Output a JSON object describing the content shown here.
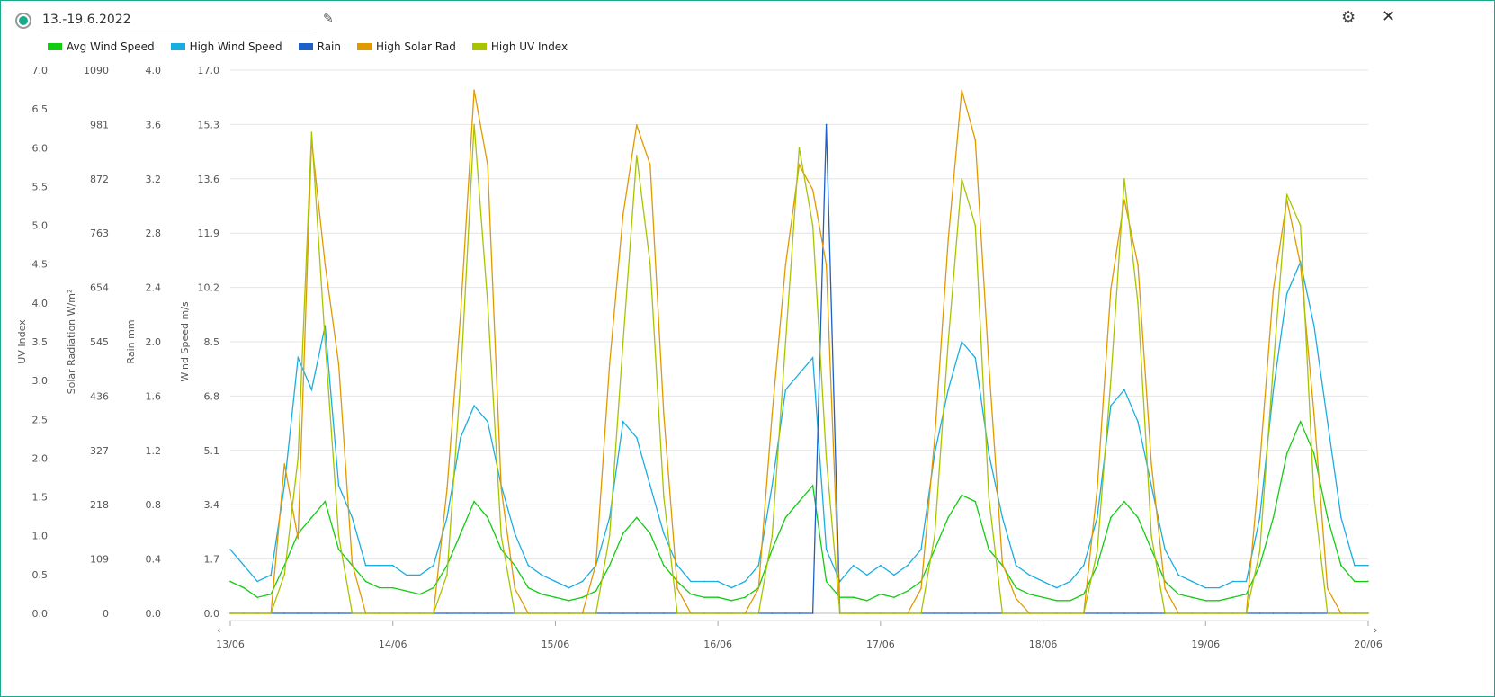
{
  "header": {
    "title": "13.-19.6.2022",
    "edit_icon": "pencil-icon",
    "settings_icon": "gear-icon",
    "close_icon": "close-icon"
  },
  "chart_data": {
    "type": "line",
    "title": "13.-19.6.2022",
    "x": {
      "categories": [
        "13/06",
        "14/06",
        "15/06",
        "16/06",
        "17/06",
        "18/06",
        "19/06",
        "20/06"
      ],
      "resolution_hours": 2
    },
    "axes": [
      {
        "label": "UV Index",
        "range": [
          0,
          7
        ],
        "ticks": [
          "0.0",
          "0.5",
          "1.0",
          "1.5",
          "2.0",
          "2.5",
          "3.0",
          "3.5",
          "4.0",
          "4.5",
          "5.0",
          "5.5",
          "6.0",
          "6.5",
          "7.0"
        ]
      },
      {
        "label": "Solar Radiation W/m²",
        "range": [
          0,
          1090
        ],
        "ticks": [
          "0",
          "109",
          "218",
          "327",
          "436",
          "545",
          "654",
          "763",
          "872",
          "981",
          "1090"
        ]
      },
      {
        "label": "Rain mm",
        "range": [
          0,
          4
        ],
        "ticks": [
          "0.0",
          "0.4",
          "0.8",
          "1.2",
          "1.6",
          "2.0",
          "2.4",
          "2.8",
          "3.2",
          "3.6",
          "4.0"
        ]
      },
      {
        "label": "Wind Speed m/s",
        "range": [
          0,
          17
        ],
        "ticks": [
          "0.0",
          "1.7",
          "3.4",
          "5.1",
          "6.8",
          "8.5",
          "10.2",
          "11.9",
          "13.6",
          "15.3",
          "17.0"
        ]
      }
    ],
    "legend_position": "top-left",
    "grid": true,
    "series": [
      {
        "name": "Avg Wind Speed",
        "color": "#11cc11",
        "axis": 3,
        "values": [
          1,
          0.8,
          0.5,
          0.6,
          1.5,
          2.5,
          3,
          3.5,
          2,
          1.5,
          1,
          0.8,
          0.8,
          0.7,
          0.6,
          0.8,
          1.5,
          2.5,
          3.5,
          3,
          2,
          1.5,
          0.8,
          0.6,
          0.5,
          0.4,
          0.5,
          0.7,
          1.5,
          2.5,
          3,
          2.5,
          1.5,
          1,
          0.6,
          0.5,
          0.5,
          0.4,
          0.5,
          0.8,
          2,
          3,
          3.5,
          4,
          1,
          0.5,
          0.5,
          0.4,
          0.6,
          0.5,
          0.7,
          1,
          2,
          3,
          3.7,
          3.5,
          2,
          1.5,
          0.8,
          0.6,
          0.5,
          0.4,
          0.4,
          0.6,
          1.5,
          3,
          3.5,
          3,
          2,
          1,
          0.6,
          0.5,
          0.4,
          0.4,
          0.5,
          0.6,
          1.5,
          3,
          5,
          6,
          5,
          3,
          1.5,
          1,
          1
        ]
      },
      {
        "name": "High Wind Speed",
        "color": "#1aaee0",
        "axis": 3,
        "values": [
          2,
          1.5,
          1,
          1.2,
          4,
          8,
          7,
          9,
          4,
          3,
          1.5,
          1.5,
          1.5,
          1.2,
          1.2,
          1.5,
          3,
          5.5,
          6.5,
          6,
          4,
          2.5,
          1.5,
          1.2,
          1,
          0.8,
          1,
          1.5,
          3,
          6,
          5.5,
          4,
          2.5,
          1.5,
          1,
          1,
          1,
          0.8,
          1,
          1.5,
          4,
          7,
          7.5,
          8,
          2,
          1,
          1.5,
          1.2,
          1.5,
          1.2,
          1.5,
          2,
          5,
          7,
          8.5,
          8,
          5,
          3,
          1.5,
          1.2,
          1,
          0.8,
          1,
          1.5,
          3,
          6.5,
          7,
          6,
          4,
          2,
          1.2,
          1,
          0.8,
          0.8,
          1,
          1,
          3,
          7,
          10,
          11,
          9,
          6,
          3,
          1.5,
          1.5
        ]
      },
      {
        "name": "Rain",
        "color": "#1f5fc8",
        "axis": 2,
        "values": [
          0,
          0,
          0,
          0,
          0,
          0,
          0,
          0,
          0,
          0,
          0,
          0,
          0,
          0,
          0,
          0,
          0,
          0,
          0,
          0,
          0,
          0,
          0,
          0,
          0,
          0,
          0,
          0,
          0,
          0,
          0,
          0,
          0,
          0,
          0,
          0,
          0,
          0,
          0,
          0,
          0,
          0,
          0,
          0,
          3.6,
          0,
          0,
          0,
          0,
          0,
          0,
          0,
          0,
          0,
          0,
          0,
          0,
          0,
          0,
          0,
          0,
          0,
          0,
          0,
          0,
          0,
          0,
          0,
          0,
          0,
          0,
          0,
          0,
          0,
          0,
          0,
          0,
          0,
          0,
          0,
          0,
          0,
          0,
          0,
          0
        ]
      },
      {
        "name": "High Solar Rad",
        "color": "#e09a00",
        "axis": 1,
        "values": [
          0,
          0,
          0,
          0,
          300,
          150,
          950,
          700,
          500,
          100,
          0,
          0,
          0,
          0,
          0,
          0,
          250,
          600,
          1050,
          900,
          250,
          50,
          0,
          0,
          0,
          0,
          0,
          100,
          500,
          800,
          980,
          900,
          400,
          50,
          0,
          0,
          0,
          0,
          0,
          50,
          400,
          700,
          900,
          850,
          700,
          0,
          0,
          0,
          0,
          0,
          0,
          50,
          350,
          750,
          1050,
          950,
          500,
          100,
          30,
          0,
          0,
          0,
          0,
          0,
          250,
          650,
          830,
          700,
          300,
          50,
          0,
          0,
          0,
          0,
          0,
          0,
          300,
          650,
          830,
          700,
          400,
          50,
          0,
          0,
          0
        ]
      },
      {
        "name": "High UV Index",
        "color": "#a8c400",
        "axis": 0,
        "values": [
          0,
          0,
          0,
          0,
          0.5,
          2,
          6.2,
          3.5,
          1,
          0,
          0,
          0,
          0,
          0,
          0,
          0,
          0.5,
          3,
          6.3,
          4,
          1,
          0,
          0,
          0,
          0,
          0,
          0,
          0,
          1,
          3.5,
          5.9,
          4.5,
          1.5,
          0,
          0,
          0,
          0,
          0,
          0,
          0,
          1,
          3.5,
          6,
          5,
          2,
          0,
          0,
          0,
          0,
          0,
          0,
          0,
          1,
          3.5,
          5.6,
          5,
          1.5,
          0,
          0,
          0,
          0,
          0,
          0,
          0,
          0.8,
          3,
          5.6,
          4,
          1,
          0,
          0,
          0,
          0,
          0,
          0,
          0,
          0.8,
          3.2,
          5.4,
          5,
          1.5,
          0,
          0,
          0,
          0
        ]
      }
    ]
  }
}
